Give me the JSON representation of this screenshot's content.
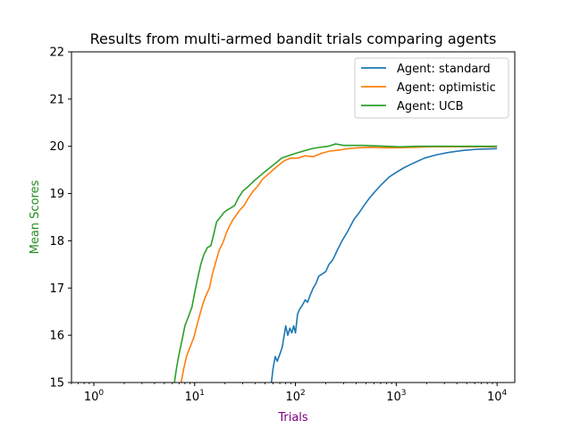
{
  "chart_data": {
    "type": "line",
    "title": "Results from multi-armed bandit trials comparing agents",
    "xlabel": "Trials",
    "ylabel": "Mean Scores",
    "xlabel_color": "#800080",
    "ylabel_color": "#228b22",
    "x_scale": "log",
    "xlim": [
      0.6,
      15000
    ],
    "ylim": [
      15,
      22
    ],
    "x_ticks": [
      {
        "value": 1,
        "base": "10",
        "exp": "0"
      },
      {
        "value": 10,
        "base": "10",
        "exp": "1"
      },
      {
        "value": 100,
        "base": "10",
        "exp": "2"
      },
      {
        "value": 1000,
        "base": "10",
        "exp": "3"
      },
      {
        "value": 10000,
        "base": "10",
        "exp": "4"
      }
    ],
    "y_ticks": [
      "15",
      "16",
      "17",
      "18",
      "19",
      "20",
      "21",
      "22"
    ],
    "grid": false,
    "legend_position": "top-right",
    "series": [
      {
        "name": "Agent: standard",
        "color": "#1f77b4",
        "points": [
          [
            57,
            14.9
          ],
          [
            60,
            15.3
          ],
          [
            63,
            15.55
          ],
          [
            66,
            15.45
          ],
          [
            70,
            15.6
          ],
          [
            74,
            15.75
          ],
          [
            78,
            16.05
          ],
          [
            80,
            16.2
          ],
          [
            84,
            16.0
          ],
          [
            88,
            16.15
          ],
          [
            92,
            16.05
          ],
          [
            96,
            16.2
          ],
          [
            100,
            16.05
          ],
          [
            105,
            16.45
          ],
          [
            110,
            16.55
          ],
          [
            118,
            16.65
          ],
          [
            125,
            16.75
          ],
          [
            132,
            16.7
          ],
          [
            140,
            16.85
          ],
          [
            150,
            17.0
          ],
          [
            160,
            17.1
          ],
          [
            170,
            17.25
          ],
          [
            185,
            17.3
          ],
          [
            200,
            17.35
          ],
          [
            215,
            17.5
          ],
          [
            235,
            17.6
          ],
          [
            260,
            17.8
          ],
          [
            290,
            18.0
          ],
          [
            330,
            18.2
          ],
          [
            380,
            18.45
          ],
          [
            430,
            18.6
          ],
          [
            480,
            18.75
          ],
          [
            540,
            18.9
          ],
          [
            620,
            19.05
          ],
          [
            720,
            19.2
          ],
          [
            850,
            19.35
          ],
          [
            1000,
            19.45
          ],
          [
            1200,
            19.55
          ],
          [
            1500,
            19.65
          ],
          [
            1900,
            19.75
          ],
          [
            2500,
            19.82
          ],
          [
            3300,
            19.87
          ],
          [
            4500,
            19.91
          ],
          [
            6500,
            19.94
          ],
          [
            10000,
            19.95
          ]
        ]
      },
      {
        "name": "Agent: optimistic",
        "color": "#ff7f0e",
        "points": [
          [
            7.2,
            14.9
          ],
          [
            7.8,
            15.3
          ],
          [
            8.3,
            15.55
          ],
          [
            9,
            15.75
          ],
          [
            9.8,
            15.95
          ],
          [
            10.5,
            16.2
          ],
          [
            11.3,
            16.45
          ],
          [
            12,
            16.65
          ],
          [
            13,
            16.85
          ],
          [
            14,
            17.0
          ],
          [
            15,
            17.3
          ],
          [
            16.2,
            17.55
          ],
          [
            17.5,
            17.8
          ],
          [
            19,
            17.95
          ],
          [
            20.5,
            18.15
          ],
          [
            22,
            18.3
          ],
          [
            24,
            18.45
          ],
          [
            26,
            18.55
          ],
          [
            28,
            18.65
          ],
          [
            31,
            18.75
          ],
          [
            34,
            18.9
          ],
          [
            38,
            19.05
          ],
          [
            42,
            19.15
          ],
          [
            47,
            19.3
          ],
          [
            53,
            19.4
          ],
          [
            60,
            19.5
          ],
          [
            68,
            19.6
          ],
          [
            78,
            19.7
          ],
          [
            90,
            19.75
          ],
          [
            105,
            19.75
          ],
          [
            125,
            19.8
          ],
          [
            150,
            19.78
          ],
          [
            180,
            19.85
          ],
          [
            220,
            19.9
          ],
          [
            270,
            19.92
          ],
          [
            330,
            19.95
          ],
          [
            420,
            19.97
          ],
          [
            550,
            19.98
          ],
          [
            750,
            19.97
          ],
          [
            1000,
            19.97
          ],
          [
            1500,
            19.98
          ],
          [
            2200,
            19.99
          ],
          [
            3500,
            19.99
          ],
          [
            6000,
            19.99
          ],
          [
            10000,
            19.99
          ]
        ]
      },
      {
        "name": "Agent: UCB",
        "color": "#2ca02c",
        "points": [
          [
            6.2,
            14.9
          ],
          [
            6.6,
            15.3
          ],
          [
            7,
            15.6
          ],
          [
            7.5,
            15.9
          ],
          [
            8,
            16.2
          ],
          [
            8.7,
            16.4
          ],
          [
            9.4,
            16.6
          ],
          [
            10,
            16.9
          ],
          [
            10.7,
            17.2
          ],
          [
            11.5,
            17.5
          ],
          [
            12.3,
            17.7
          ],
          [
            13.3,
            17.85
          ],
          [
            14.5,
            17.9
          ],
          [
            15.5,
            18.15
          ],
          [
            16.5,
            18.4
          ],
          [
            18,
            18.5
          ],
          [
            19.5,
            18.6
          ],
          [
            21,
            18.65
          ],
          [
            23,
            18.7
          ],
          [
            25,
            18.75
          ],
          [
            27,
            18.9
          ],
          [
            30,
            19.05
          ],
          [
            34,
            19.15
          ],
          [
            38,
            19.25
          ],
          [
            43,
            19.35
          ],
          [
            49,
            19.45
          ],
          [
            56,
            19.55
          ],
          [
            64,
            19.65
          ],
          [
            73,
            19.75
          ],
          [
            85,
            19.8
          ],
          [
            100,
            19.85
          ],
          [
            120,
            19.9
          ],
          [
            145,
            19.95
          ],
          [
            175,
            19.98
          ],
          [
            210,
            20.0
          ],
          [
            250,
            20.05
          ],
          [
            300,
            20.02
          ],
          [
            380,
            20.02
          ],
          [
            480,
            20.02
          ],
          [
            620,
            20.01
          ],
          [
            800,
            20.0
          ],
          [
            1100,
            19.99
          ],
          [
            1600,
            20.0
          ],
          [
            2500,
            20.0
          ],
          [
            4000,
            20.0
          ],
          [
            6500,
            20.0
          ],
          [
            10000,
            20.0
          ]
        ]
      }
    ]
  }
}
